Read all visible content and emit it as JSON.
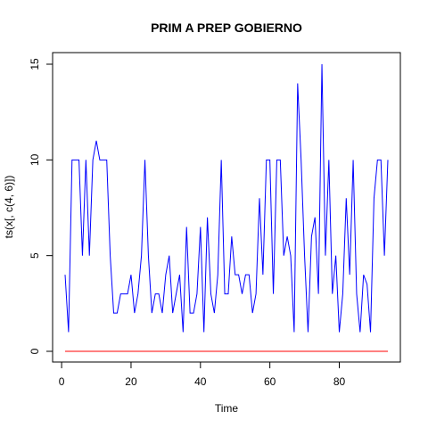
{
  "chart_data": {
    "type": "line",
    "title": "PRIM A PREP GOBIERNO",
    "xlabel": "Time",
    "ylabel": "ts(x[, c(4, 6)])",
    "xlim": [
      1,
      94
    ],
    "ylim": [
      0,
      15
    ],
    "x_ticks": [
      0,
      20,
      40,
      60,
      80
    ],
    "y_ticks": [
      0,
      5,
      10,
      15
    ],
    "grid": false,
    "series": [
      {
        "color": "#0000ff",
        "x": [
          1,
          2,
          3,
          4,
          5,
          6,
          7,
          8,
          9,
          10,
          11,
          12,
          13,
          14,
          15,
          16,
          17,
          18,
          19,
          20,
          21,
          22,
          23,
          24,
          25,
          26,
          27,
          28,
          29,
          30,
          31,
          32,
          33,
          34,
          35,
          36,
          37,
          38,
          39,
          40,
          41,
          42,
          43,
          44,
          45,
          46,
          47,
          48,
          49,
          50,
          51,
          52,
          53,
          54,
          55,
          56,
          57,
          58,
          59,
          60,
          61,
          62,
          63,
          64,
          65,
          66,
          67,
          68,
          69,
          70,
          71,
          72,
          73,
          74,
          75,
          76,
          77,
          78,
          79,
          80,
          81,
          82,
          83,
          84,
          85,
          86,
          87,
          88,
          89,
          90,
          91,
          92,
          93,
          94
        ],
        "values": [
          4,
          1,
          10,
          10,
          10,
          5,
          10,
          5,
          10,
          11,
          10,
          10,
          10,
          5,
          2,
          2,
          3,
          3,
          3,
          4,
          2,
          3,
          5,
          10,
          5,
          2,
          3,
          3,
          2,
          4,
          5,
          2,
          3,
          4,
          1,
          6.5,
          2,
          2,
          3,
          6.5,
          1,
          7,
          3,
          2,
          4,
          10,
          3,
          3,
          6,
          4,
          4,
          3,
          4,
          4,
          2,
          3,
          8,
          4,
          10,
          10,
          3,
          10,
          10,
          5,
          6,
          5,
          1,
          14,
          10,
          5,
          1,
          6,
          7,
          3,
          15,
          5,
          10,
          3,
          5,
          1,
          3,
          8,
          4,
          10,
          3,
          1,
          4,
          3.5,
          1,
          8,
          10,
          10,
          5,
          10
        ]
      },
      {
        "color": "#ff0000",
        "x": [
          1,
          2,
          3,
          4,
          5,
          6,
          7,
          8,
          9,
          10,
          11,
          12,
          13,
          14,
          15,
          16,
          17,
          18,
          19,
          20,
          21,
          22,
          23,
          24,
          25,
          26,
          27,
          28,
          29,
          30,
          31,
          32,
          33,
          34,
          35,
          36,
          37,
          38,
          39,
          40,
          41,
          42,
          43,
          44,
          45,
          46,
          47,
          48,
          49,
          50,
          51,
          52,
          53,
          54,
          55,
          56,
          57,
          58,
          59,
          60,
          61,
          62,
          63,
          64,
          65,
          66,
          67,
          68,
          69,
          70,
          71,
          72,
          73,
          74,
          75,
          76,
          77,
          78,
          79,
          80,
          81,
          82,
          83,
          84,
          85,
          86,
          87,
          88,
          89,
          90,
          91,
          92,
          93,
          94
        ],
        "values": [
          0,
          0,
          0,
          0,
          0,
          0,
          0,
          0,
          0,
          0,
          0,
          0,
          0,
          0,
          0,
          0,
          0,
          0,
          0,
          0,
          0,
          0,
          0,
          0,
          0,
          0,
          0,
          0,
          0,
          0,
          0,
          0,
          0,
          0,
          0,
          0,
          0,
          0,
          0,
          0,
          0,
          0,
          0,
          0,
          0,
          0,
          0,
          0,
          0,
          0,
          0,
          0,
          0,
          0,
          0,
          0,
          0,
          0,
          0,
          0,
          0,
          0,
          0,
          0,
          0,
          0,
          0,
          0,
          0,
          0,
          0,
          0,
          0,
          0,
          0,
          0,
          0,
          0,
          0,
          0,
          0,
          0,
          0,
          0,
          0,
          0,
          0,
          0,
          0,
          0,
          0,
          0,
          0,
          0
        ]
      }
    ]
  }
}
